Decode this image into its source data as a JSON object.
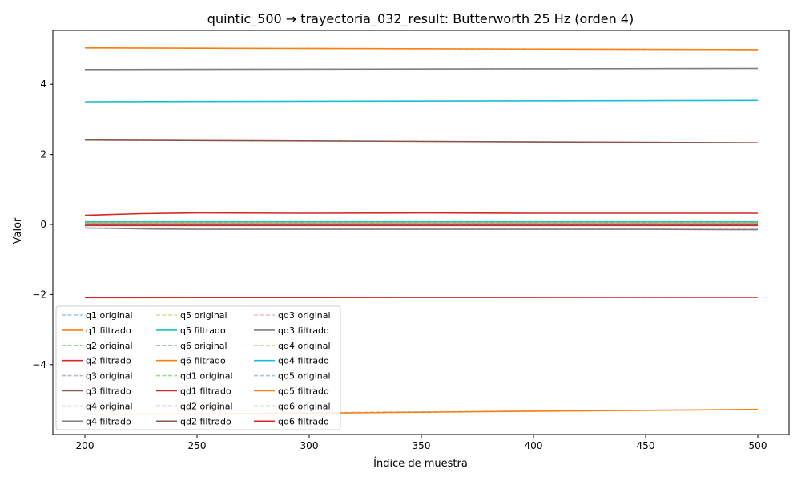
{
  "chart_data": {
    "type": "line",
    "title": "quintic_500 → trayectoria_032_result: Butterworth 25 Hz (orden 4)",
    "xlabel": "Índice de muestra",
    "ylabel": "Valor",
    "xlim": [
      185,
      1250
    ],
    "ylim": [
      -5.95,
      5.6
    ],
    "xticks": [
      200,
      250,
      300,
      350,
      400,
      450,
      500
    ],
    "yticks": [
      -4,
      -2,
      0,
      2,
      4
    ],
    "xtick_labels": [
      "200",
      "250",
      "300",
      "350",
      "400",
      "450",
      "500"
    ],
    "ytick_labels": [
      "−4",
      "−2",
      "0",
      "2",
      "4"
    ],
    "grid": false,
    "legend_position": "lower-left",
    "series": [
      {
        "name": "q1 original",
        "style": "dashed",
        "color": "#9ec4e6",
        "x": [
          200,
          500
        ],
        "y": [
          5.04,
          4.99
        ]
      },
      {
        "name": "q1 filtrado",
        "style": "solid",
        "color": "#ff7f0e",
        "x": [
          200,
          500
        ],
        "y": [
          5.04,
          4.99
        ]
      },
      {
        "name": "q2 original",
        "style": "dashed",
        "color": "#98df8a",
        "x": [
          200,
          500
        ],
        "y": [
          -0.03,
          -0.03
        ]
      },
      {
        "name": "q2 filtrado",
        "style": "solid",
        "color": "#d62728",
        "x": [
          200,
          500
        ],
        "y": [
          -0.03,
          -0.03
        ]
      },
      {
        "name": "q3 original",
        "style": "dashed",
        "color": "#c5b0d5",
        "x": [
          200,
          500
        ],
        "y": [
          2.41,
          2.33
        ]
      },
      {
        "name": "q3 filtrado",
        "style": "solid",
        "color": "#8c564b",
        "x": [
          200,
          500
        ],
        "y": [
          2.41,
          2.33
        ]
      },
      {
        "name": "q4 original",
        "style": "dashed",
        "color": "#f7b6d2",
        "x": [
          200,
          500
        ],
        "y": [
          -0.1,
          -0.12
        ]
      },
      {
        "name": "q4 filtrado",
        "style": "solid",
        "color": "#7f7f7f",
        "x": [
          200,
          230,
          250,
          300,
          350,
          400,
          450,
          500
        ],
        "y": [
          -0.1,
          -0.13,
          -0.14,
          -0.14,
          -0.14,
          -0.14,
          -0.14,
          -0.15
        ]
      },
      {
        "name": "q5 original",
        "style": "dashed",
        "color": "#dbdb8d",
        "x": [
          200,
          500
        ],
        "y": [
          0.05,
          0.05
        ]
      },
      {
        "name": "q5 filtrado",
        "style": "solid",
        "color": "#17becf",
        "x": [
          200,
          500
        ],
        "y": [
          3.5,
          3.54
        ]
      },
      {
        "name": "q6 original",
        "style": "dashed",
        "color": "#9ec4e6",
        "x": [
          200,
          500
        ],
        "y": [
          0.02,
          0.02
        ]
      },
      {
        "name": "q6 filtrado",
        "style": "solid",
        "color": "#ff7f0e",
        "x": [
          200,
          500
        ],
        "y": [
          0.02,
          0.02
        ]
      },
      {
        "name": "qd1 original",
        "style": "dashed",
        "color": "#98df8a",
        "x": [
          200,
          500
        ],
        "y": [
          0.08,
          0.08
        ]
      },
      {
        "name": "qd1 filtrado",
        "style": "solid",
        "color": "#d62728",
        "x": [
          200,
          225,
          250,
          300,
          350,
          400,
          450,
          500
        ],
        "y": [
          0.26,
          0.31,
          0.33,
          0.32,
          0.33,
          0.32,
          0.32,
          0.32
        ]
      },
      {
        "name": "qd2 original",
        "style": "dashed",
        "color": "#c5b0d5",
        "x": [
          200,
          500
        ],
        "y": [
          0.0,
          0.0
        ]
      },
      {
        "name": "qd2 filtrado",
        "style": "solid",
        "color": "#8c564b",
        "x": [
          200,
          500
        ],
        "y": [
          0.0,
          0.0
        ]
      },
      {
        "name": "qd3 original",
        "style": "dashed",
        "color": "#f7b6d2",
        "x": [
          200,
          500
        ],
        "y": [
          4.42,
          4.45
        ]
      },
      {
        "name": "qd3 filtrado",
        "style": "solid",
        "color": "#7f7f7f",
        "x": [
          200,
          500
        ],
        "y": [
          4.42,
          4.45
        ]
      },
      {
        "name": "qd4 original",
        "style": "dashed",
        "color": "#dbdb8d",
        "x": [
          200,
          500
        ],
        "y": [
          0.07,
          0.07
        ]
      },
      {
        "name": "qd4 filtrado",
        "style": "solid",
        "color": "#17becf",
        "x": [
          200,
          500
        ],
        "y": [
          0.07,
          0.07
        ]
      },
      {
        "name": "qd5 original",
        "style": "dashed",
        "color": "#9ec4e6",
        "x": [
          200,
          500
        ],
        "y": [
          -5.42,
          -5.28
        ]
      },
      {
        "name": "qd5 filtrado",
        "style": "solid",
        "color": "#ff7f0e",
        "x": [
          200,
          300,
          400,
          500
        ],
        "y": [
          -5.42,
          -5.39,
          -5.33,
          -5.28
        ]
      },
      {
        "name": "qd6 original",
        "style": "dashed",
        "color": "#98df8a",
        "x": [
          200,
          500
        ],
        "y": [
          -2.09,
          -2.08
        ]
      },
      {
        "name": "qd6 filtrado",
        "style": "solid",
        "color": "#d62728",
        "x": [
          200,
          500
        ],
        "y": [
          -2.09,
          -2.08
        ]
      }
    ]
  }
}
